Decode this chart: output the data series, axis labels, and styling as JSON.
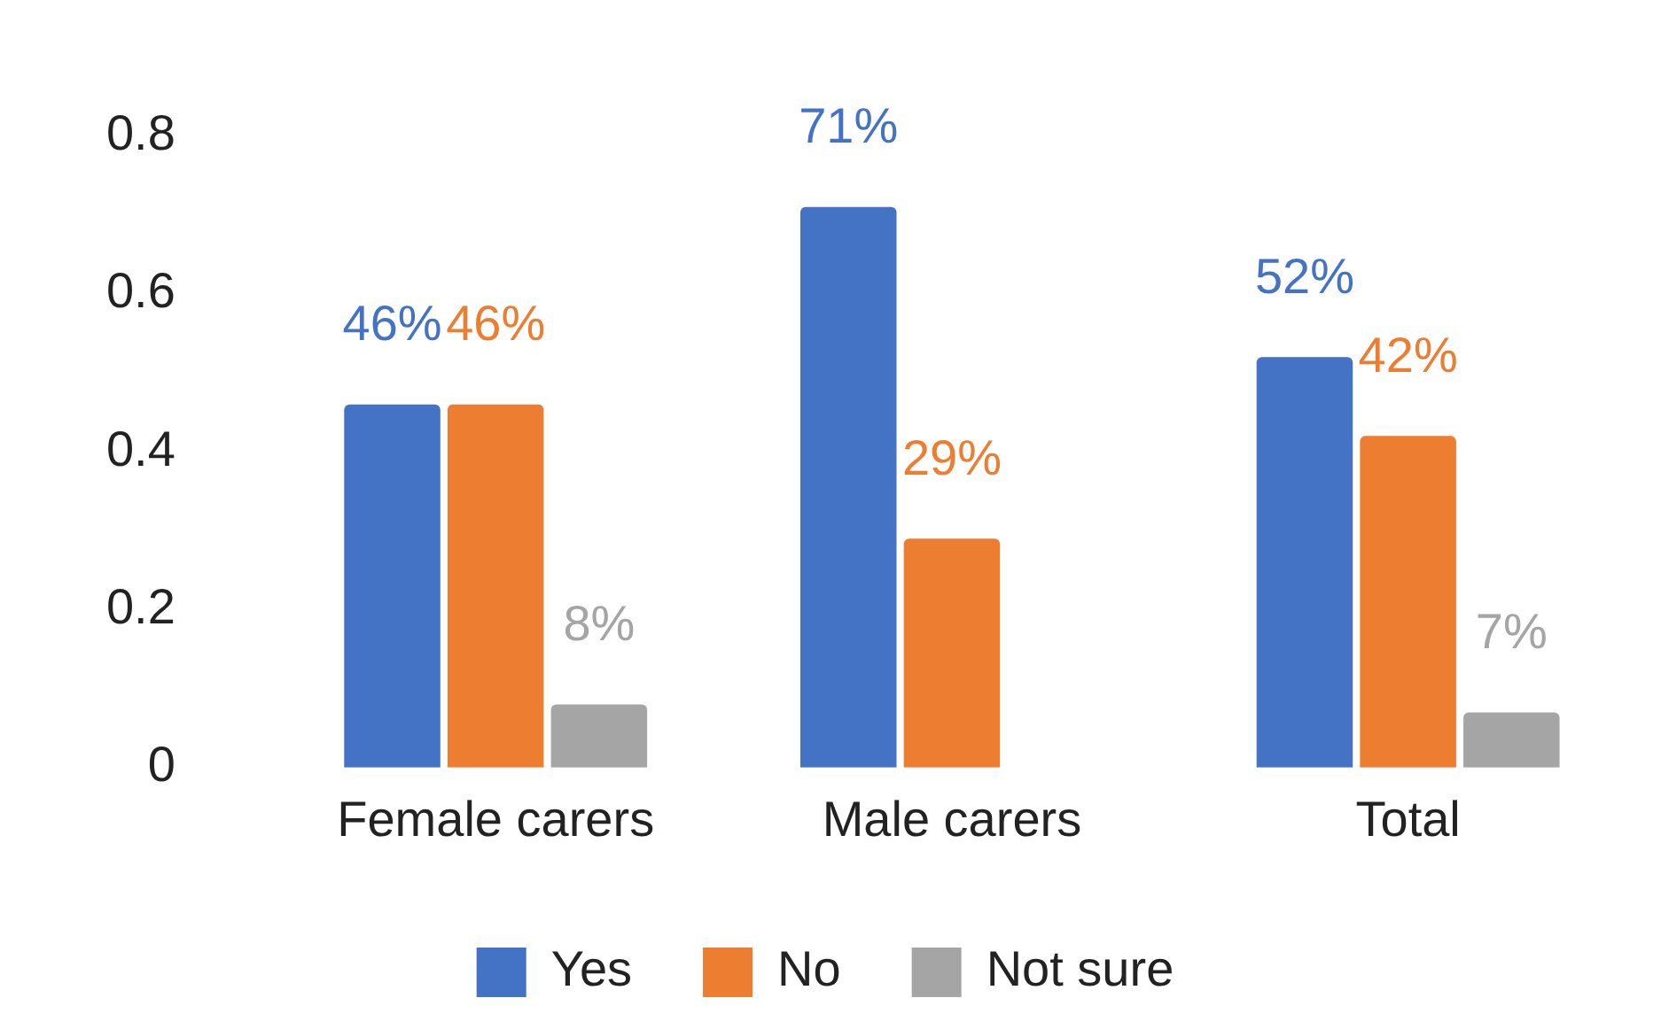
{
  "chart_data": {
    "type": "bar",
    "categories": [
      "Female carers",
      "Male carers",
      "Total"
    ],
    "series": [
      {
        "name": "Yes",
        "color": "#4472c4",
        "values": [
          0.46,
          0.71,
          0.52
        ],
        "value_labels": [
          "46%",
          "71%",
          "52%"
        ]
      },
      {
        "name": "No",
        "color": "#ed7d31",
        "values": [
          0.46,
          0.29,
          0.42
        ],
        "value_labels": [
          "46%",
          "29%",
          "42%"
        ]
      },
      {
        "name": "Not sure",
        "color": "#a5a5a5",
        "values": [
          0.08,
          null,
          0.07
        ],
        "value_labels": [
          "8%",
          null,
          "7%"
        ]
      }
    ],
    "ylim": [
      0,
      0.8
    ],
    "yticks": [
      0,
      0.2,
      0.4,
      0.6,
      0.8
    ],
    "legend": "bottom"
  }
}
